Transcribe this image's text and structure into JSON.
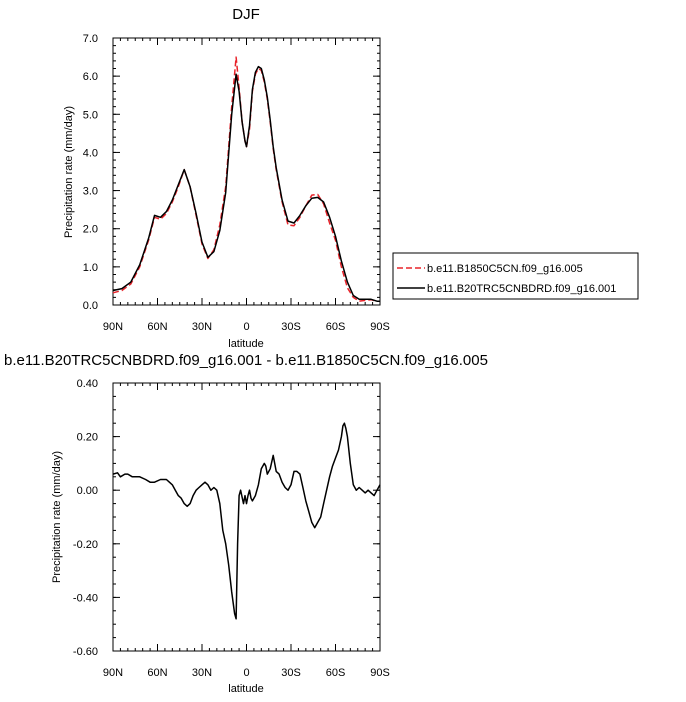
{
  "chart_data": [
    {
      "type": "line",
      "title": "DJF",
      "xlabel": "latitude",
      "ylabel": "Precipitation rate (mm/day)",
      "xlim": [
        90,
        -90
      ],
      "ylim": [
        0,
        7
      ],
      "x_ticks": [
        90,
        60,
        30,
        0,
        -30,
        -60,
        -90
      ],
      "x_tick_labels": [
        "90N",
        "60N",
        "30N",
        "0",
        "30S",
        "60S",
        "90S"
      ],
      "y_ticks": [
        0,
        1,
        2,
        3,
        4,
        5,
        6,
        7
      ],
      "y_tick_labels": [
        "0.0",
        "1.0",
        "2.0",
        "3.0",
        "4.0",
        "5.0",
        "6.0",
        "7.0"
      ],
      "legend": "right",
      "series": [
        {
          "name": "b.e11.B1850C5CN.f09_g16.005",
          "color": "#e8232a",
          "dash": "dashed",
          "x": [
            90,
            84,
            78,
            72,
            66,
            62,
            58,
            54,
            50,
            46,
            42,
            38,
            34,
            30,
            26,
            22,
            18,
            14,
            10,
            7,
            5,
            3,
            1,
            0,
            -2,
            -4,
            -6,
            -8,
            -10,
            -12,
            -14,
            -16,
            -18,
            -20,
            -24,
            -28,
            -32,
            -36,
            -40,
            -44,
            -48,
            -52,
            -56,
            -60,
            -64,
            -68,
            -72,
            -76,
            -80,
            -84,
            -88,
            -90
          ],
          "values": [
            0.32,
            0.38,
            0.55,
            1.0,
            1.7,
            2.3,
            2.25,
            2.4,
            2.7,
            3.1,
            3.55,
            3.1,
            2.35,
            1.6,
            1.22,
            1.45,
            2.1,
            3.1,
            5.2,
            6.5,
            5.7,
            4.8,
            4.3,
            4.15,
            4.6,
            5.6,
            6.05,
            6.2,
            6.15,
            5.85,
            5.4,
            4.8,
            4.1,
            3.55,
            2.7,
            2.1,
            2.08,
            2.3,
            2.6,
            2.88,
            2.9,
            2.65,
            2.15,
            1.7,
            1.0,
            0.45,
            0.2,
            0.1,
            0.12,
            0.14,
            0.1,
            0.1
          ]
        },
        {
          "name": "b.e11.B20TRC5CNBDRD.f09_g16.001",
          "color": "#000000",
          "dash": "solid",
          "x": [
            90,
            84,
            78,
            72,
            66,
            62,
            58,
            54,
            50,
            46,
            42,
            38,
            34,
            30,
            26,
            22,
            18,
            14,
            10,
            7,
            5,
            3,
            1,
            0,
            -2,
            -4,
            -6,
            -8,
            -10,
            -12,
            -14,
            -16,
            -18,
            -20,
            -24,
            -28,
            -32,
            -36,
            -40,
            -44,
            -48,
            -52,
            -56,
            -60,
            -64,
            -68,
            -72,
            -76,
            -80,
            -84,
            -88,
            -90
          ],
          "values": [
            0.38,
            0.43,
            0.6,
            1.05,
            1.75,
            2.35,
            2.3,
            2.45,
            2.75,
            3.15,
            3.55,
            3.1,
            2.4,
            1.65,
            1.25,
            1.4,
            1.95,
            2.95,
            5.0,
            6.05,
            5.6,
            4.8,
            4.3,
            4.15,
            4.7,
            5.65,
            6.1,
            6.25,
            6.2,
            5.9,
            5.45,
            4.85,
            4.15,
            3.6,
            2.75,
            2.2,
            2.15,
            2.35,
            2.6,
            2.8,
            2.82,
            2.7,
            2.3,
            1.8,
            1.15,
            0.6,
            0.25,
            0.15,
            0.15,
            0.15,
            0.1,
            0.1
          ]
        }
      ]
    },
    {
      "type": "line",
      "title": "b.e11.B20TRC5CNBDRD.f09_g16.001 - b.e11.B1850C5CN.f09_g16.005",
      "xlabel": "latitude",
      "ylabel": "Precipitation rate (mm/day)",
      "xlim": [
        90,
        -90
      ],
      "ylim": [
        -0.6,
        0.4
      ],
      "x_ticks": [
        90,
        60,
        30,
        0,
        -30,
        -60,
        -90
      ],
      "x_tick_labels": [
        "90N",
        "60N",
        "30N",
        "0",
        "30S",
        "60S",
        "90S"
      ],
      "y_ticks": [
        0.4,
        0.2,
        0,
        -0.2,
        -0.4,
        -0.6
      ],
      "y_tick_labels": [
        "0.40",
        "0.20",
        "0.00",
        "-0.20",
        "-0.40",
        "-0.60"
      ],
      "series": [
        {
          "color": "#000000",
          "dash": "solid",
          "x": [
            90,
            87,
            85,
            82,
            80,
            77,
            72,
            68,
            65,
            62,
            58,
            54,
            52,
            50,
            48,
            46,
            44,
            42,
            40,
            38,
            36,
            34,
            32,
            30,
            28,
            26,
            24,
            22,
            20,
            18,
            16,
            14,
            12,
            10,
            8,
            7,
            6,
            5,
            4,
            2,
            1,
            0,
            -1,
            -2,
            -3,
            -4,
            -5,
            -6,
            -8,
            -10,
            -12,
            -13,
            -14,
            -16,
            -18,
            -20,
            -22,
            -24,
            -26,
            -28,
            -30,
            -32,
            -34,
            -36,
            -38,
            -40,
            -42,
            -44,
            -46,
            -48,
            -50,
            -52,
            -54,
            -56,
            -58,
            -60,
            -62,
            -64,
            -65,
            -66,
            -67,
            -68,
            -70,
            -72,
            -74,
            -76,
            -78,
            -80,
            -82,
            -84,
            -86,
            -88,
            -90
          ],
          "values": [
            0.06,
            0.065,
            0.05,
            0.06,
            0.06,
            0.05,
            0.05,
            0.04,
            0.03,
            0.03,
            0.04,
            0.04,
            0.03,
            0.02,
            0.0,
            -0.02,
            -0.03,
            -0.05,
            -0.06,
            -0.05,
            -0.02,
            0.0,
            0.01,
            0.02,
            0.03,
            0.02,
            0.0,
            0.01,
            0.0,
            -0.05,
            -0.15,
            -0.2,
            -0.28,
            -0.38,
            -0.46,
            -0.48,
            -0.2,
            -0.02,
            0.0,
            -0.05,
            -0.02,
            -0.05,
            -0.02,
            0.0,
            -0.03,
            -0.04,
            -0.03,
            -0.02,
            0.02,
            0.08,
            0.1,
            0.09,
            0.06,
            0.08,
            0.13,
            0.07,
            0.06,
            0.03,
            0.01,
            0.0,
            0.02,
            0.07,
            0.07,
            0.06,
            0.01,
            -0.04,
            -0.08,
            -0.12,
            -0.14,
            -0.12,
            -0.1,
            -0.05,
            0.0,
            0.05,
            0.09,
            0.12,
            0.15,
            0.2,
            0.24,
            0.25,
            0.23,
            0.2,
            0.1,
            0.02,
            0.0,
            0.01,
            0.0,
            -0.01,
            0.0,
            -0.01,
            -0.02,
            0.0,
            0.02
          ]
        }
      ]
    }
  ]
}
